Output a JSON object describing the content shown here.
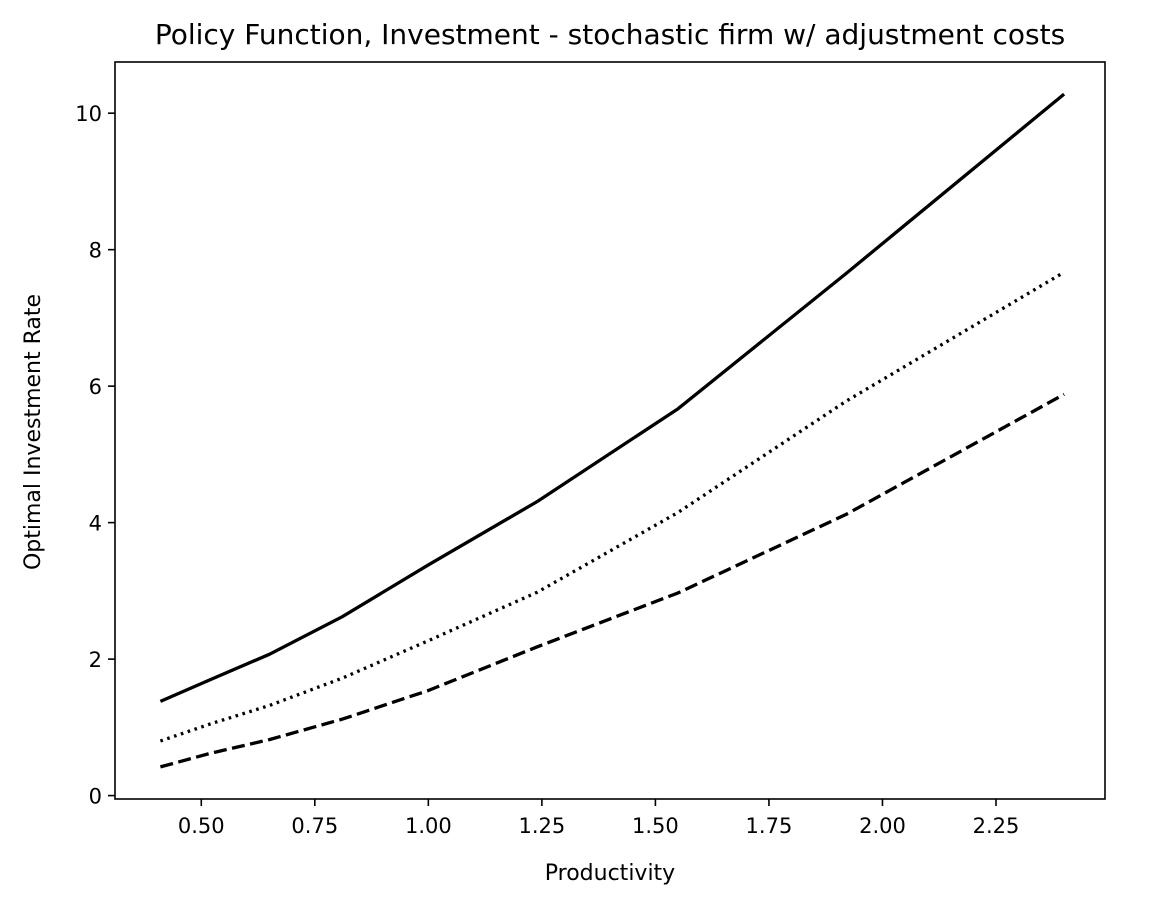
{
  "chart_data": {
    "type": "line",
    "title": "Policy Function, Investment - stochastic firm w/ adjustment costs",
    "xlabel": "Productivity",
    "ylabel": "Optimal Investment Rate",
    "xlim": [
      0.31,
      2.49
    ],
    "ylim": [
      -0.05,
      10.75
    ],
    "xticks": [
      0.5,
      0.75,
      1.0,
      1.25,
      1.5,
      1.75,
      2.0,
      2.25
    ],
    "xtick_labels": [
      "0.50",
      "0.75",
      "1.00",
      "1.25",
      "1.50",
      "1.75",
      "2.00",
      "2.25"
    ],
    "yticks": [
      0,
      2,
      4,
      6,
      8,
      10
    ],
    "ytick_labels": [
      "0",
      "2",
      "4",
      "6",
      "8",
      "10"
    ],
    "grid": false,
    "x": [
      0.41,
      0.52,
      0.65,
      0.81,
      1.0,
      1.24,
      1.55,
      1.92,
      2.4
    ],
    "series": [
      {
        "line_style": "solid",
        "color": "#000000",
        "values": [
          1.38,
          1.7,
          2.07,
          2.62,
          3.38,
          4.31,
          5.67,
          7.65,
          10.28
        ]
      },
      {
        "line_style": "dotted",
        "color": "#000000",
        "values": [
          0.8,
          1.05,
          1.32,
          1.72,
          2.27,
          2.98,
          4.15,
          5.78,
          7.67
        ]
      },
      {
        "line_style": "dashed",
        "color": "#000000",
        "values": [
          0.42,
          0.62,
          0.82,
          1.12,
          1.54,
          2.18,
          2.97,
          4.12,
          5.88
        ]
      }
    ]
  }
}
